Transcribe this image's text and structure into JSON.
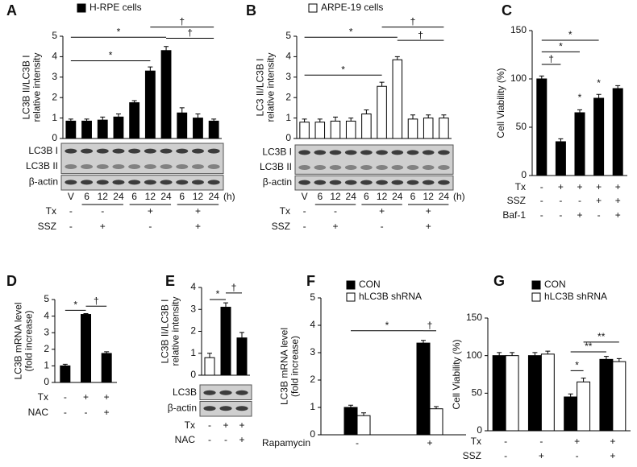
{
  "chart_data": [
    {
      "type": "bar",
      "panel_label": "A",
      "ylabel": [
        "LC3B II/LC3B I",
        "relative intensity"
      ],
      "ylim": [
        0,
        5
      ],
      "yticks": [
        0,
        1,
        2,
        3,
        4,
        5
      ],
      "categories": [
        "V",
        "6",
        "12",
        "24",
        "6",
        "12",
        "24",
        "6",
        "12",
        "24"
      ],
      "x_unit": "(h)",
      "series": [
        {
          "name": "H-RPE cells",
          "color": "#000000",
          "values": [
            0.85,
            0.85,
            0.9,
            1.05,
            1.75,
            3.3,
            4.3,
            1.25,
            1.0,
            0.85
          ],
          "errors": [
            0.1,
            0.1,
            0.15,
            0.15,
            0.1,
            0.2,
            0.2,
            0.25,
            0.2,
            0.1
          ]
        }
      ],
      "blot_labels": [
        "LC3B I",
        "LC3B II",
        "β-actin"
      ],
      "conditions": [
        {
          "label": "Tx",
          "values": [
            "-",
            "-",
            "+",
            "+"
          ]
        },
        {
          "label": "SSZ",
          "values": [
            "-",
            "+",
            "-",
            "+"
          ]
        }
      ],
      "annotations": [
        "*",
        "*",
        "†",
        "†"
      ]
    },
    {
      "type": "bar",
      "panel_label": "B",
      "ylabel": [
        "LC3 II/LC3B I",
        "relative intensity"
      ],
      "ylim": [
        0,
        5
      ],
      "yticks": [
        0,
        1,
        2,
        3,
        4,
        5
      ],
      "categories": [
        "V",
        "6",
        "12",
        "24",
        "6",
        "12",
        "24",
        "6",
        "12",
        "24"
      ],
      "x_unit": "(h)",
      "series": [
        {
          "name": "ARPE-19 cells",
          "color": "#ffffff",
          "values": [
            0.8,
            0.8,
            0.85,
            0.85,
            1.2,
            2.55,
            3.85,
            0.95,
            1.0,
            1.0
          ],
          "errors": [
            0.15,
            0.15,
            0.2,
            0.15,
            0.2,
            0.2,
            0.15,
            0.2,
            0.15,
            0.15
          ]
        }
      ],
      "blot_labels": [
        "LC3B I",
        "LC3B II",
        "β-actin"
      ],
      "conditions": [
        {
          "label": "Tx",
          "values": [
            "-",
            "-",
            "+",
            "+"
          ]
        },
        {
          "label": "SSZ",
          "values": [
            "-",
            "+",
            "-",
            "+"
          ]
        }
      ],
      "annotations": [
        "*",
        "*",
        "†",
        "†"
      ]
    },
    {
      "type": "bar",
      "panel_label": "C",
      "ylabel": [
        "Cell Viability  (%)"
      ],
      "ylim": [
        0,
        150
      ],
      "yticks": [
        0,
        50,
        100,
        150
      ],
      "series": [
        {
          "color": "#000000",
          "values": [
            100,
            35,
            65,
            80,
            90
          ],
          "errors": [
            3,
            3,
            3,
            4,
            3
          ]
        }
      ],
      "conditions": [
        {
          "label": "Tx",
          "values": [
            "-",
            "+",
            "+",
            "+",
            "+"
          ]
        },
        {
          "label": "SSZ",
          "values": [
            "-",
            "-",
            "-",
            "+",
            "+"
          ]
        },
        {
          "label": "Baf-1",
          "values": [
            "-",
            "-",
            "+",
            "-",
            "+"
          ]
        }
      ],
      "annotations": [
        "†",
        "*",
        "*",
        "*",
        "*"
      ]
    },
    {
      "type": "bar",
      "panel_label": "D",
      "ylabel": [
        "LC3B mRNA level",
        "(fold increase)"
      ],
      "ylim": [
        0,
        5
      ],
      "yticks": [
        0,
        1,
        2,
        3,
        4,
        5
      ],
      "series": [
        {
          "color": "#000000",
          "values": [
            1,
            4.1,
            1.75
          ],
          "errors": [
            0.1,
            0.05,
            0.1
          ]
        }
      ],
      "conditions": [
        {
          "label": "Tx",
          "values": [
            "-",
            "+",
            "+"
          ]
        },
        {
          "label": "NAC",
          "values": [
            "-",
            "-",
            "+"
          ]
        }
      ],
      "annotations": [
        "*",
        "†"
      ]
    },
    {
      "type": "bar",
      "panel_label": "E",
      "ylabel": [
        "LC3B II/LC3B I",
        "relative intensity"
      ],
      "ylim": [
        0,
        4
      ],
      "yticks": [
        0,
        1,
        2,
        3,
        4
      ],
      "series": [
        {
          "colors": [
            "#ffffff",
            "#000000",
            "#000000"
          ],
          "values": [
            0.8,
            3.1,
            1.7
          ],
          "errors": [
            0.2,
            0.2,
            0.25
          ]
        }
      ],
      "blot_labels": [
        "LC3B",
        "β-actin"
      ],
      "conditions": [
        {
          "label": "Tx",
          "values": [
            "-",
            "+",
            "+"
          ]
        },
        {
          "label": "NAC",
          "values": [
            "-",
            "-",
            "+"
          ]
        }
      ],
      "annotations": [
        "*",
        "†"
      ]
    },
    {
      "type": "bar",
      "panel_label": "F",
      "ylabel": [
        "LC3B mRNA level",
        "(fold increase)"
      ],
      "ylim": [
        0,
        5
      ],
      "yticks": [
        0,
        1,
        2,
        3,
        4,
        5
      ],
      "categories": [
        "-",
        "+"
      ],
      "xlabel": "Rapamycin",
      "series": [
        {
          "name": "CON",
          "color": "#000000",
          "values": [
            1.0,
            3.35
          ],
          "errors": [
            0.08,
            0.1
          ]
        },
        {
          "name": "hLC3B shRNA",
          "color": "#ffffff",
          "values": [
            0.7,
            0.95
          ],
          "errors": [
            0.1,
            0.08
          ]
        }
      ],
      "annotations": [
        "*",
        "†"
      ]
    },
    {
      "type": "bar",
      "panel_label": "G",
      "ylabel": [
        "Cell Viability (%)"
      ],
      "ylim": [
        0,
        150
      ],
      "yticks": [
        0,
        50,
        100,
        150
      ],
      "series": [
        {
          "name": "CON",
          "color": "#000000",
          "values": [
            100,
            100,
            45,
            95
          ],
          "errors": [
            4,
            4,
            4,
            4
          ]
        },
        {
          "name": "hLC3B shRNA",
          "color": "#ffffff",
          "values": [
            100,
            102,
            65,
            92
          ],
          "errors": [
            4,
            4,
            5,
            4
          ]
        }
      ],
      "conditions": [
        {
          "label": "Tx",
          "values": [
            "-",
            "-",
            "+",
            "+"
          ]
        },
        {
          "label": "SSZ",
          "values": [
            "-",
            "+",
            "-",
            "+"
          ]
        }
      ],
      "annotations": [
        "*",
        "**",
        "**"
      ]
    }
  ]
}
